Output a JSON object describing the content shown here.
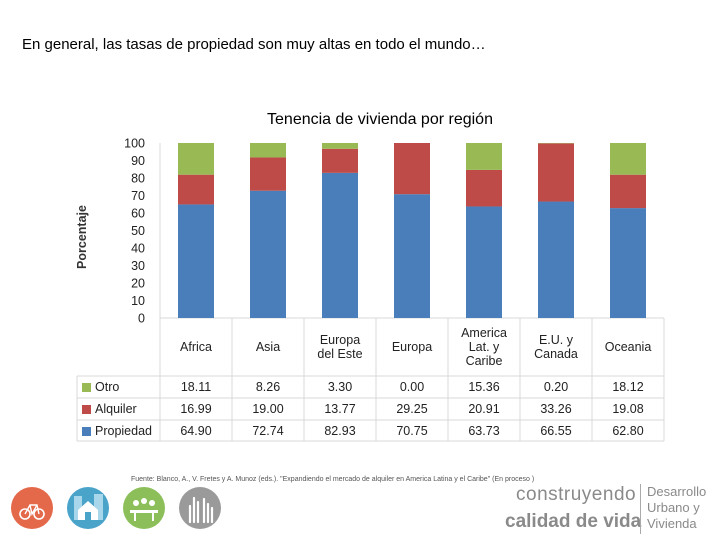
{
  "page": {
    "headline": "En general, las tasas de propiedad son muy altas en todo el mundo…",
    "source": "Fuente: Blanco, A., V. Fretes y A. Munoz (eds.). \"Expandiendo el mercado de alquiler en America Latina y el Caribe\" (En proceso )"
  },
  "branding": {
    "line1": "construyendo",
    "line2": "calidad de vida",
    "side1": "Desarrollo",
    "side2": "Urbano y",
    "side3": "Vivienda"
  },
  "chart_data": {
    "type": "bar",
    "stacked": true,
    "title": "Tenencia de vivienda por región",
    "ylabel": "Porcentaje",
    "xlabel": "",
    "ylim": [
      0,
      100
    ],
    "yticks": [
      "0",
      "10",
      "20",
      "30",
      "40",
      "50",
      "60",
      "70",
      "80",
      "90",
      "100"
    ],
    "categories": [
      "Africa",
      "Asia",
      "Europa del Este",
      "Europa",
      "America Lat. y Caribe",
      "E.U. y Canada",
      "Oceania"
    ],
    "category_lines": [
      [
        "Africa"
      ],
      [
        "Asia"
      ],
      [
        "Europa",
        "del Este"
      ],
      [
        "Europa"
      ],
      [
        "America",
        "Lat. y",
        "Caribe"
      ],
      [
        "E.U. y",
        "Canada"
      ],
      [
        "Oceania"
      ]
    ],
    "series": [
      {
        "name": "Propiedad",
        "color": "#4a7ebb",
        "values": [
          64.9,
          72.74,
          82.93,
          70.75,
          63.73,
          66.55,
          62.8
        ],
        "labels": [
          "64.90",
          "72.74",
          "82.93",
          "70.75",
          "63.73",
          "66.55",
          "62.80"
        ]
      },
      {
        "name": "Alquiler",
        "color": "#be4b48",
        "values": [
          16.99,
          19.0,
          13.77,
          29.25,
          20.91,
          33.26,
          19.08
        ],
        "labels": [
          "16.99",
          "19.00",
          "13.77",
          "29.25",
          "20.91",
          "33.26",
          "19.08"
        ]
      },
      {
        "name": "Otro",
        "color": "#98b954",
        "values": [
          18.11,
          8.26,
          3.3,
          0.0,
          15.36,
          0.2,
          18.12
        ],
        "labels": [
          "18.11",
          "8.26",
          "3.30",
          "0.00",
          "15.36",
          "0.20",
          "18.12"
        ]
      }
    ],
    "table_row_order": [
      "Otro",
      "Alquiler",
      "Propiedad"
    ]
  },
  "logos": [
    {
      "name": "bicycle-logo",
      "color": "#e4694b"
    },
    {
      "name": "buildings-logo",
      "color": "#4aa3c9"
    },
    {
      "name": "community-logo",
      "color": "#8cbf5a"
    },
    {
      "name": "hands-logo",
      "color": "#9a9a9a"
    }
  ]
}
